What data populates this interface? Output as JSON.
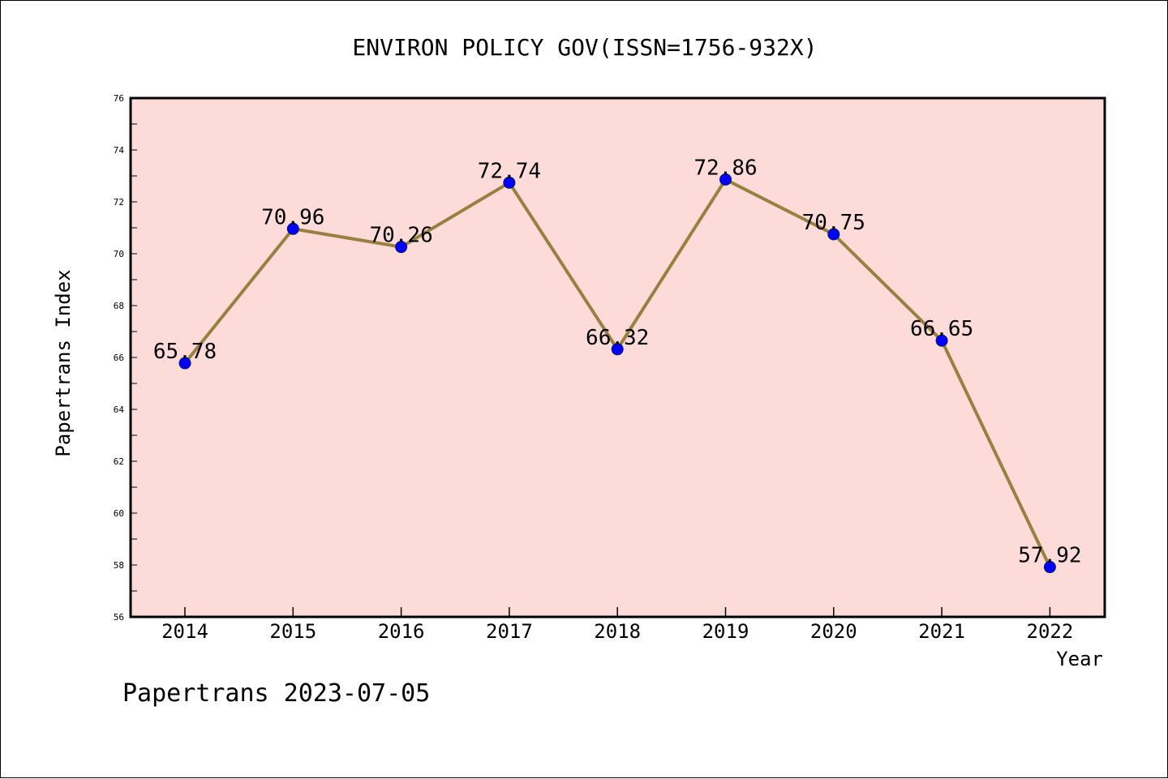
{
  "chart_data": {
    "type": "line",
    "title": "ENVIRON POLICY GOV(ISSN=1756-932X)",
    "xlabel": "Year",
    "ylabel": "Papertrans Index",
    "categories": [
      "2014",
      "2015",
      "2016",
      "2017",
      "2018",
      "2019",
      "2020",
      "2021",
      "2022"
    ],
    "values": [
      65.78,
      70.96,
      70.26,
      72.74,
      66.32,
      72.86,
      70.75,
      66.65,
      57.92
    ],
    "data_labels": [
      "65.78",
      "70.96",
      "70.26",
      "72.74",
      "66.32",
      "72.86",
      "70.75",
      "66.65",
      "57.92"
    ],
    "ylim": [
      56,
      76
    ],
    "yticks": [
      "56",
      "58",
      "60",
      "62",
      "64",
      "66",
      "68",
      "70",
      "72",
      "74",
      "76"
    ],
    "grid": false,
    "legend": "none",
    "colors": {
      "plot_background": "#fddbd8",
      "line": "#9a8040",
      "marker": "#0000ff"
    }
  },
  "footer": {
    "text": "Papertrans 2023-07-05"
  }
}
